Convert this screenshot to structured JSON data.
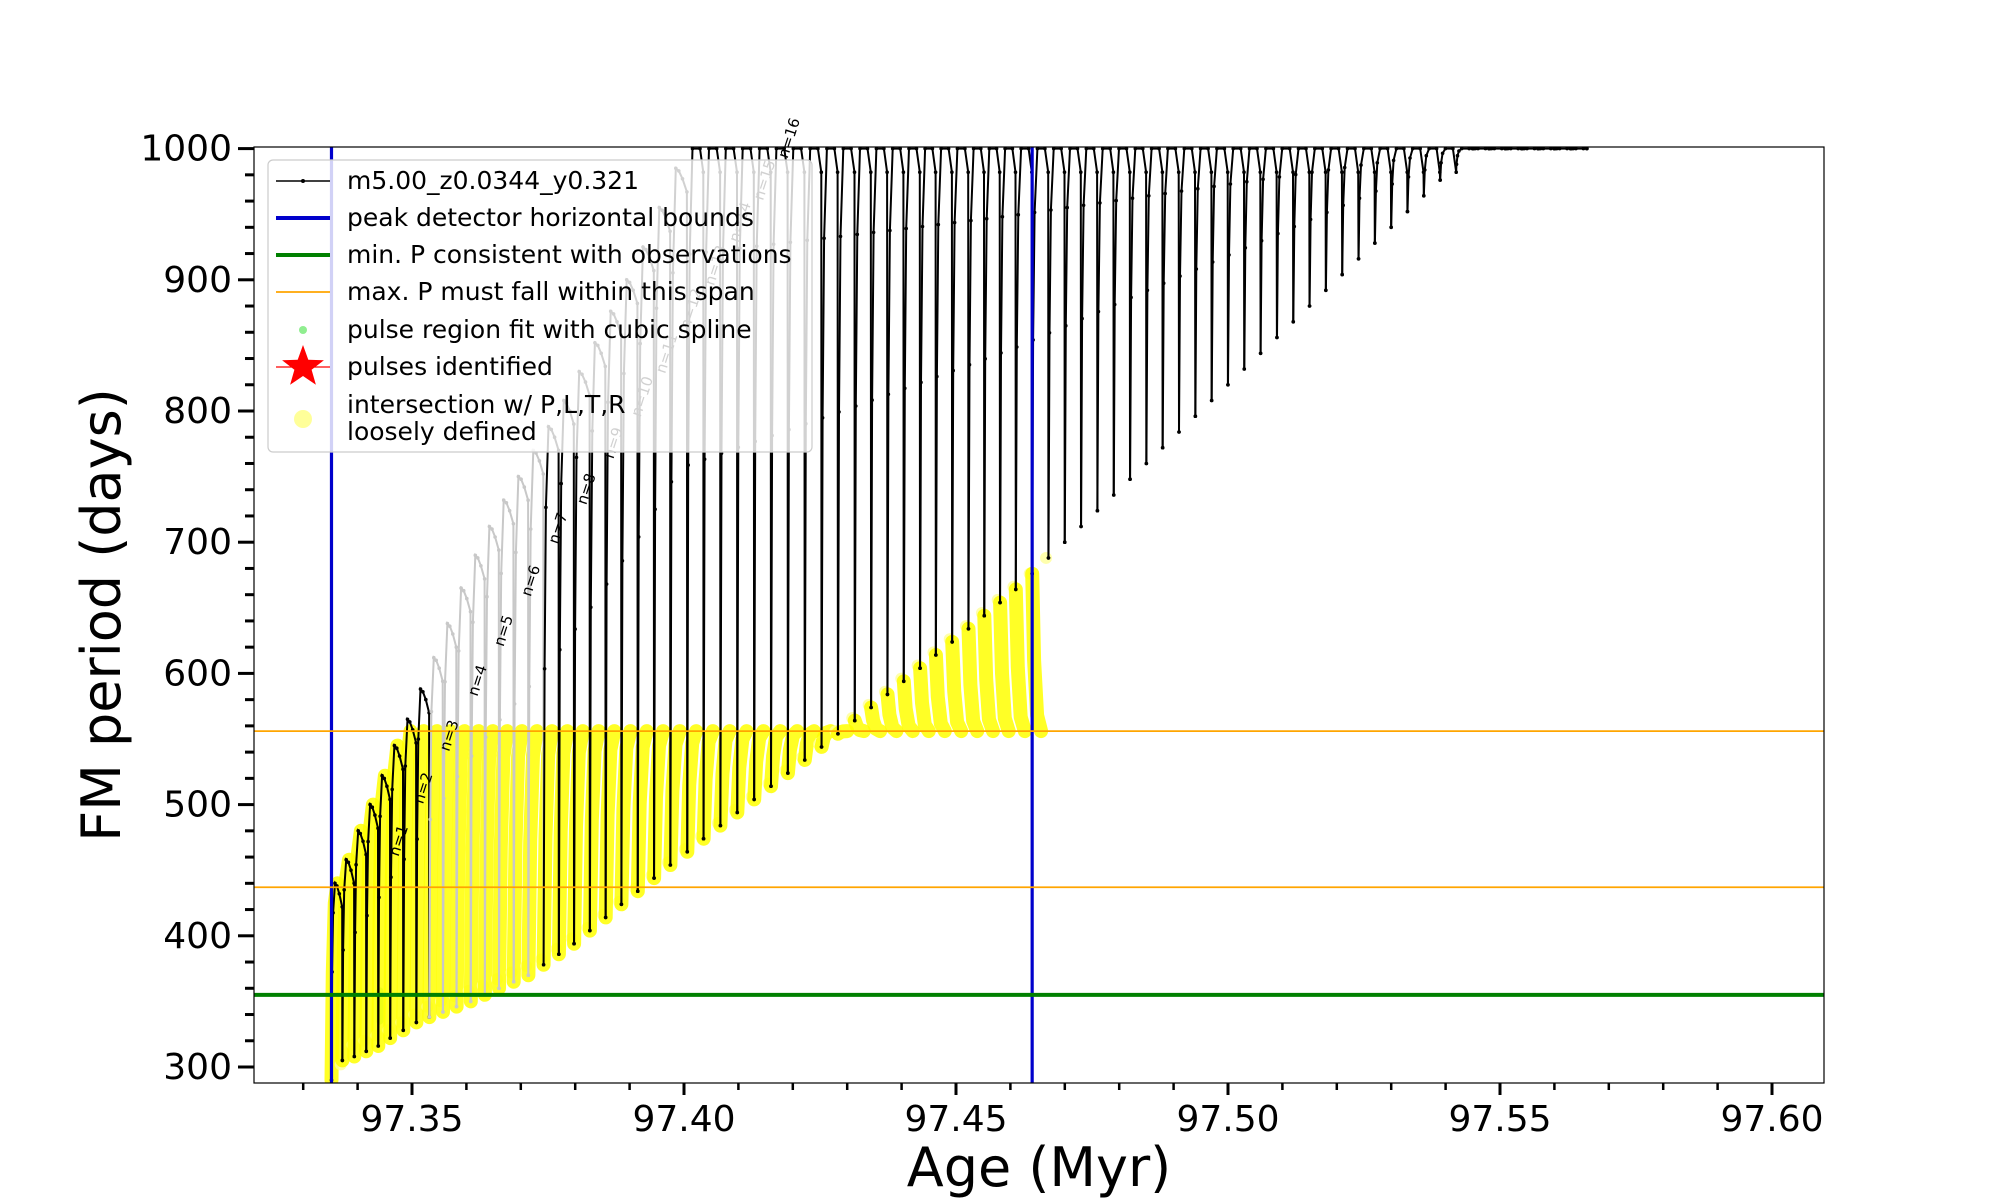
{
  "chart_data": {
    "type": "line",
    "xlabel": "Age (Myr)",
    "ylabel": "FM period (days)",
    "xlim": [
      97.3226,
      97.6114
    ],
    "ylim": [
      287,
      1000
    ],
    "xticks": [
      97.35,
      97.4,
      97.45,
      97.5,
      97.55,
      97.6
    ],
    "xtick_labels": [
      "97.35",
      "97.40",
      "97.45",
      "97.50",
      "97.55",
      "97.60"
    ],
    "xminor_step": 0.01,
    "yticks": [
      300,
      400,
      500,
      600,
      700,
      800,
      900,
      1000
    ],
    "ytick_labels": [
      "300",
      "400",
      "500",
      "600",
      "700",
      "800",
      "900",
      "1000"
    ],
    "yminor_step": 20,
    "grid": false,
    "legend_position": "top-left",
    "legend": [
      {
        "label": "m5.00_z0.0344_y0.321",
        "style": "line-dot",
        "color": "#000000"
      },
      {
        "label": "peak detector horizontal bounds",
        "style": "line",
        "color": "#0000cc"
      },
      {
        "label": "min. P consistent with observations",
        "style": "line",
        "color": "#008000"
      },
      {
        "label": "max. P must fall within this span",
        "style": "line",
        "color": "#ffa500"
      },
      {
        "label": "pulse region fit with cubic spline",
        "style": "dot",
        "color": "#90ee90"
      },
      {
        "label": "pulses identified",
        "style": "star",
        "color": "#ff0000"
      },
      {
        "label": "intersection w/ P,L,T,R",
        "style": "circle",
        "color": "#ffff99"
      },
      {
        "label": "loosely defined",
        "style": "text",
        "color": ""
      }
    ],
    "vertical_lines": [
      {
        "x": 97.3352,
        "color": "#0000cc"
      },
      {
        "x": 97.464,
        "color": "#0000cc"
      }
    ],
    "horizontal_lines": [
      {
        "y": 355,
        "color": "#008000"
      },
      {
        "y": 437,
        "color": "#ffa500"
      },
      {
        "y": 556,
        "color": "#ffa500"
      }
    ],
    "series_pulses": {
      "name": "m5.00_z0.0344_y0.321",
      "color": "#000000",
      "start_age": [
        97.3352,
        97.3372,
        97.3394,
        97.3416,
        97.3438,
        97.346,
        97.3484,
        97.3508,
        97.3532,
        97.3557,
        97.3582,
        97.3608,
        97.3634,
        97.366,
        97.3687,
        97.3714,
        97.3742,
        97.377,
        97.3798,
        97.3827,
        97.3856,
        97.3885,
        97.3915,
        97.3945,
        97.3975,
        97.4006,
        97.4036,
        97.4067,
        97.4098,
        97.4129,
        97.416,
        97.4191,
        97.4222,
        97.4253,
        97.4283,
        97.4314,
        97.4344,
        97.4374,
        97.4404,
        97.4434,
        97.4463,
        97.4493,
        97.4523,
        97.4552,
        97.4581,
        97.461,
        97.464,
        97.467,
        97.47,
        97.473,
        97.476,
        97.479,
        97.482,
        97.485,
        97.488,
        97.491,
        97.494,
        97.497,
        97.5,
        97.503,
        97.506,
        97.509,
        97.512,
        97.515,
        97.518,
        97.521,
        97.524,
        97.527,
        97.53,
        97.533,
        97.536,
        97.539,
        97.542,
        97.545,
        97.548,
        97.551,
        97.554,
        97.557,
        97.56,
        97.563
      ],
      "min_period": [
        290,
        305,
        308,
        312,
        316,
        322,
        328,
        334,
        338,
        342,
        346,
        350,
        355,
        360,
        365,
        370,
        378,
        386,
        394,
        404,
        414,
        424,
        434,
        444,
        454,
        464,
        474,
        484,
        494,
        504,
        514,
        524,
        534,
        544,
        554,
        564,
        574,
        584,
        594,
        604,
        614,
        624,
        634,
        644,
        654,
        664,
        676,
        688,
        700,
        712,
        724,
        736,
        748,
        760,
        772,
        784,
        796,
        808,
        820,
        832,
        844,
        856,
        868,
        880,
        892,
        904,
        916,
        928,
        940,
        952,
        964,
        976,
        988,
        1000,
        1000,
        1000,
        1000,
        1000,
        1000,
        1000
      ],
      "peak_period": [
        440,
        458,
        480,
        500,
        522,
        545,
        565,
        588,
        612,
        638,
        665,
        690,
        712,
        732,
        750,
        770,
        788,
        808,
        830,
        852,
        876,
        900,
        925,
        955,
        985,
        1000,
        1000,
        1000,
        1000,
        1000,
        1000,
        1000,
        1000,
        1000,
        1000,
        1000,
        1000,
        1000,
        1000,
        1000,
        1000,
        1000,
        1000,
        1000,
        1000,
        1000,
        1000,
        1000,
        1000,
        1000,
        1000,
        1000,
        1000,
        1000,
        1000,
        1000,
        1000,
        1000,
        1000,
        1000,
        1000,
        1000,
        1000,
        1000,
        1000,
        1000,
        1000,
        1000,
        1000,
        1000,
        1000,
        1000,
        1000,
        1000,
        1000,
        1000,
        1000,
        1000,
        1000,
        1000
      ]
    },
    "pulse_labels": [
      {
        "text": "n=1",
        "x": 97.3475,
        "y": 460,
        "faded": false
      },
      {
        "text": "n=2",
        "x": 97.352,
        "y": 500,
        "faded": false
      },
      {
        "text": "n=3",
        "x": 97.3568,
        "y": 540,
        "faded": false
      },
      {
        "text": "n=4",
        "x": 97.362,
        "y": 582,
        "faded": false
      },
      {
        "text": "n=5",
        "x": 97.3668,
        "y": 620,
        "faded": false
      },
      {
        "text": "n=6",
        "x": 97.3718,
        "y": 658,
        "faded": false
      },
      {
        "text": "n=7",
        "x": 97.3768,
        "y": 698,
        "faded": false
      },
      {
        "text": "n=8",
        "x": 97.382,
        "y": 728,
        "faded": false
      },
      {
        "text": "n=9",
        "x": 97.387,
        "y": 763,
        "faded": true
      },
      {
        "text": "n=10",
        "x": 97.392,
        "y": 795,
        "faded": true
      },
      {
        "text": "n=11",
        "x": 97.3965,
        "y": 828,
        "faded": true
      },
      {
        "text": "n=12",
        "x": 97.401,
        "y": 862,
        "faded": true
      },
      {
        "text": "n=13",
        "x": 97.4055,
        "y": 895,
        "faded": true
      },
      {
        "text": "n=14",
        "x": 97.41,
        "y": 928,
        "faded": true
      },
      {
        "text": "n=15",
        "x": 97.4145,
        "y": 960,
        "faded": true
      },
      {
        "text": "n=16",
        "x": 97.419,
        "y": 992,
        "faded": false
      }
    ]
  }
}
